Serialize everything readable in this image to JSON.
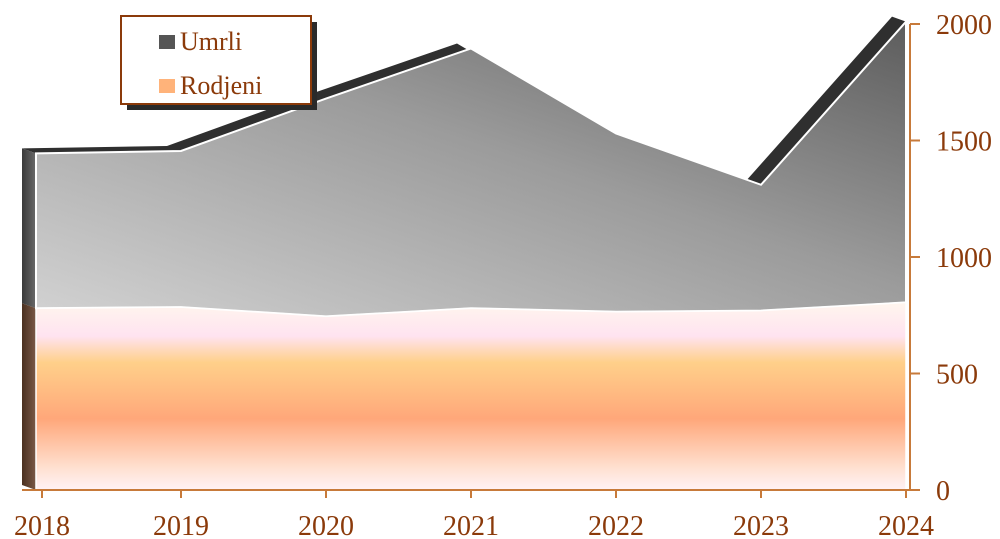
{
  "chart_data": {
    "type": "area",
    "stacked": true,
    "x": [
      "2018",
      "2019",
      "2020",
      "2021",
      "2022",
      "2023",
      "2024"
    ],
    "series": [
      {
        "name": "Rodjeni",
        "values": [
          780,
          785,
          745,
          780,
          765,
          770,
          805
        ]
      },
      {
        "name": "Umrli",
        "values": [
          665,
          670,
          935,
          1115,
          765,
          540,
          1205
        ]
      }
    ],
    "y_ticks": [
      "0",
      "500",
      "1000",
      "1500",
      "2000"
    ],
    "ylim": [
      0,
      2000
    ],
    "axis_position": "right",
    "legend_position": "top-left",
    "colors": {
      "Umrli": "#8a8a8a",
      "Rodjeni": "#ffb37a",
      "axis": "#c77a3a",
      "text": "#8b3a0a"
    }
  }
}
